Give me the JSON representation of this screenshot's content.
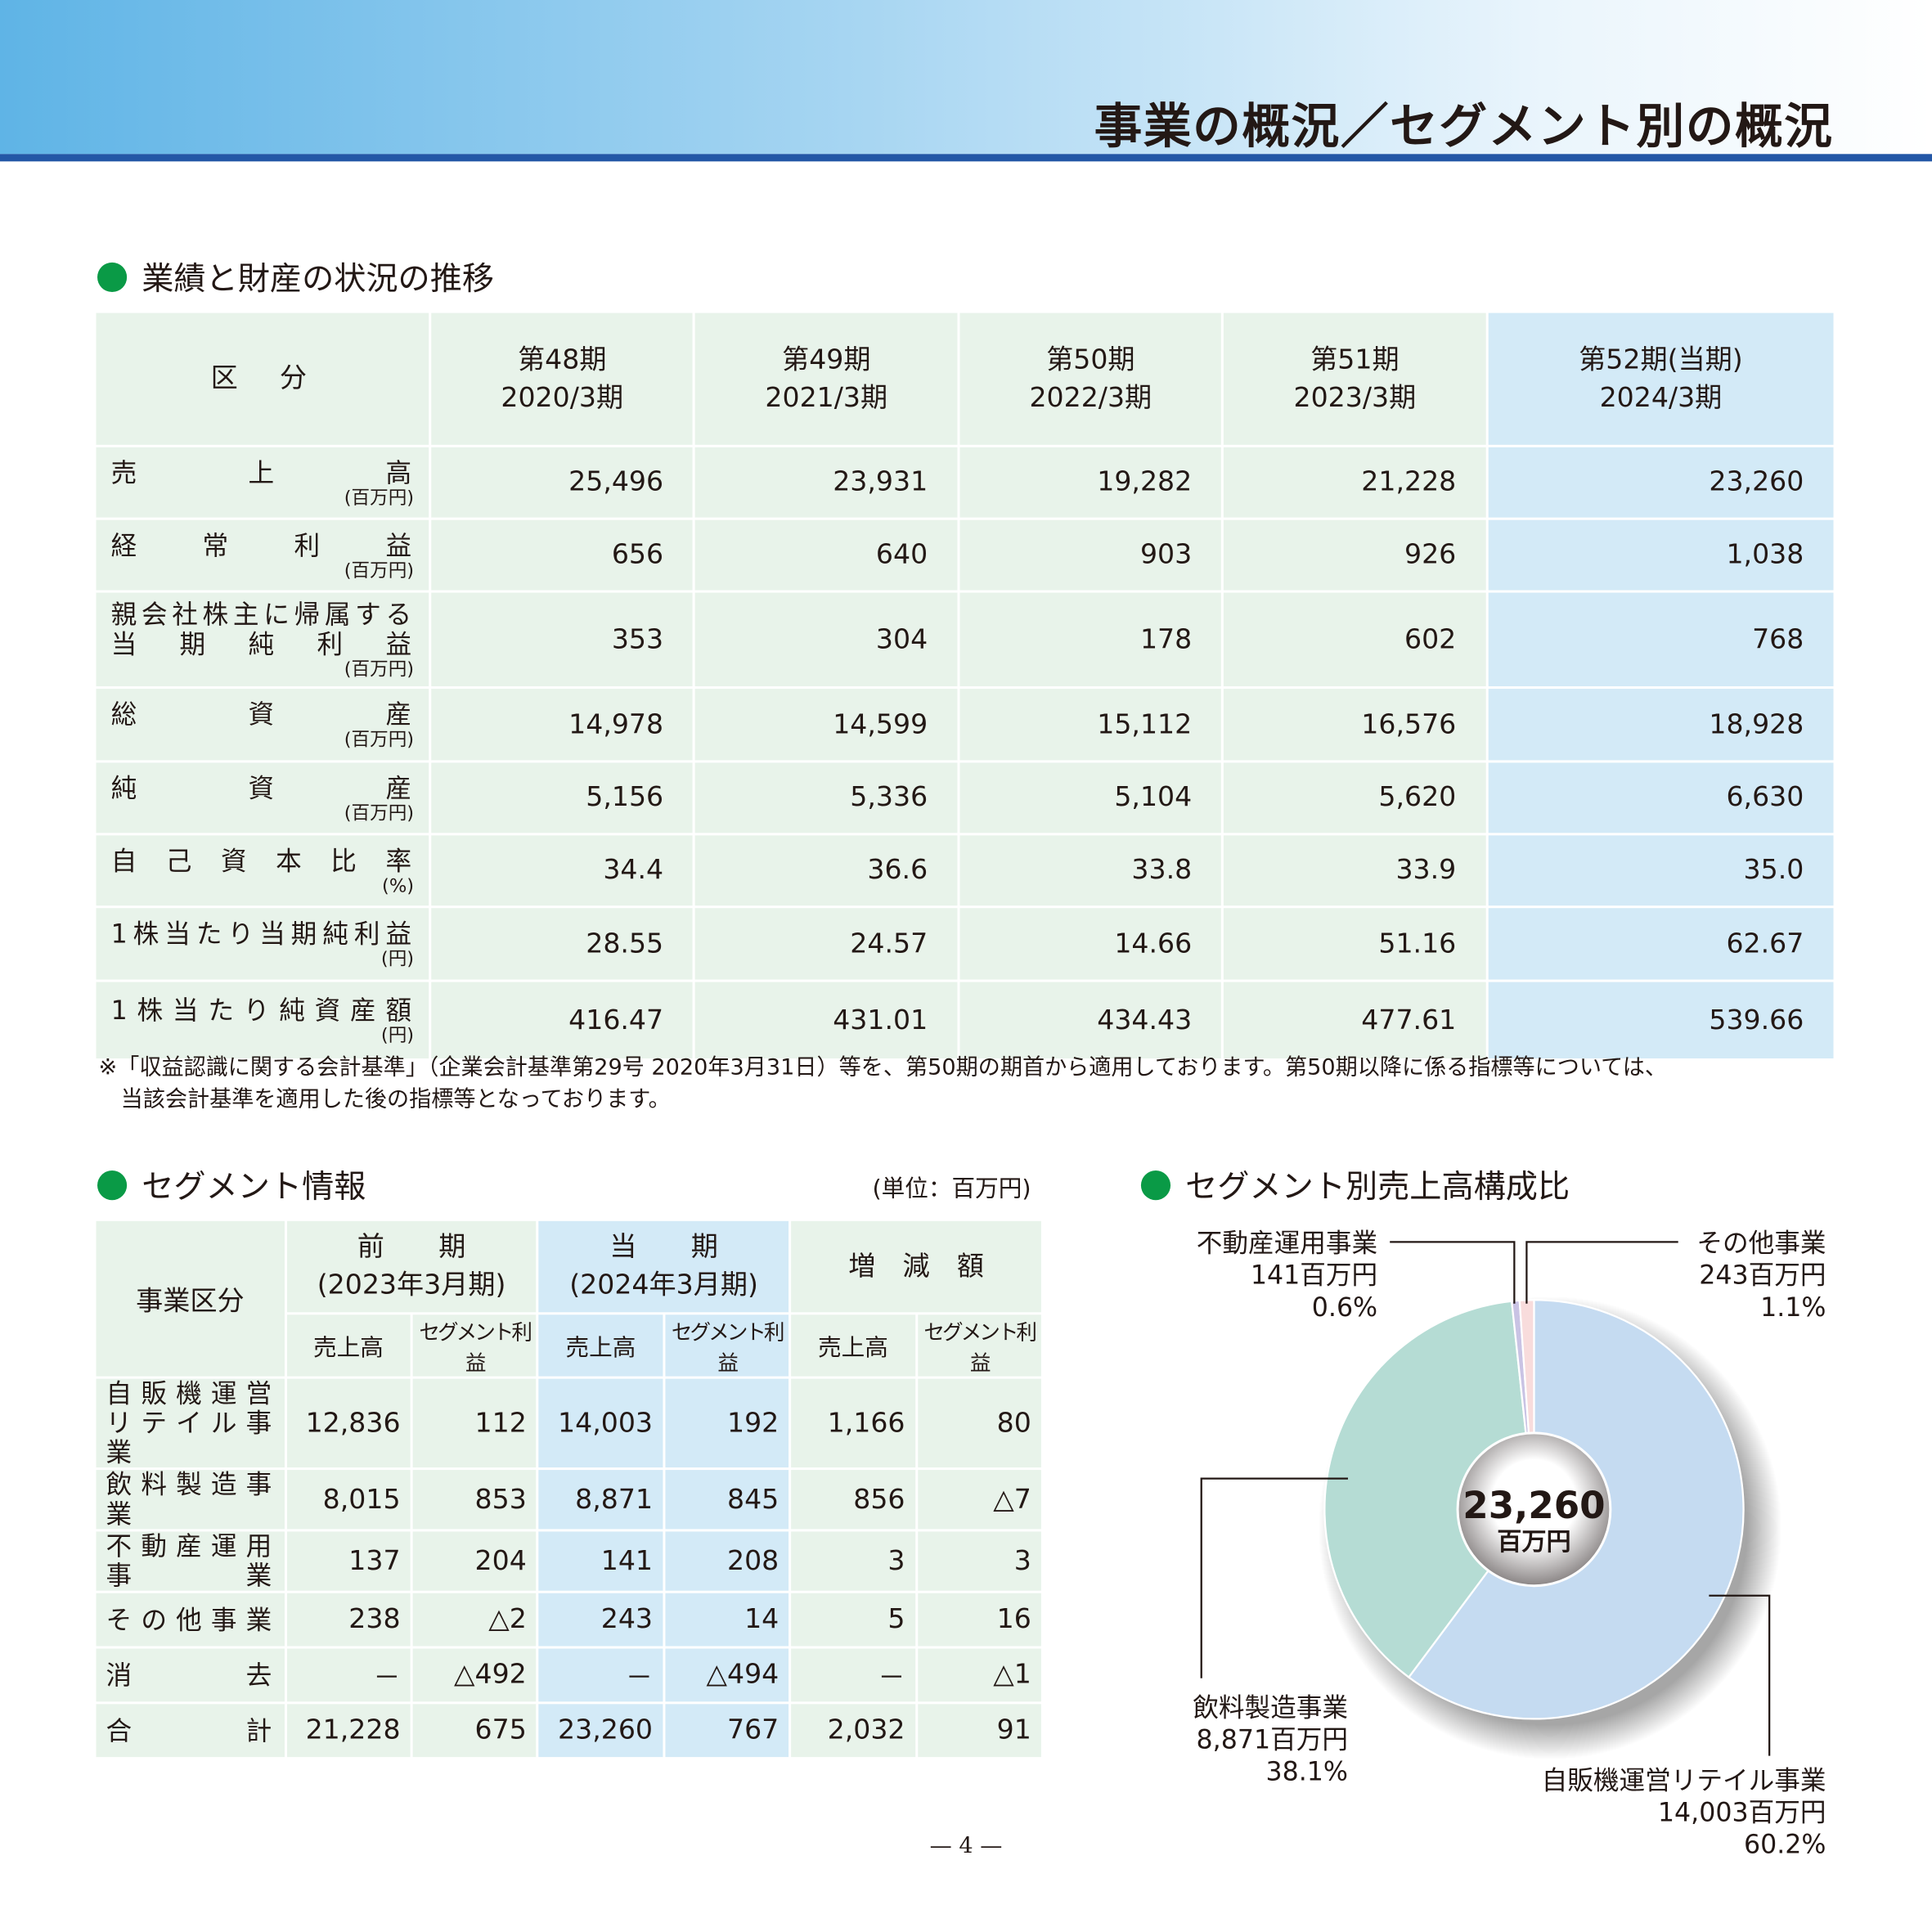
{
  "header": {
    "title": "事業の概況／セグメント別の概況"
  },
  "performance": {
    "heading": "業績と財産の状況の推移",
    "corner": "区　分",
    "periods": [
      {
        "label": "第48期",
        "date": "2020/3期"
      },
      {
        "label": "第49期",
        "date": "2021/3期"
      },
      {
        "label": "第50期",
        "date": "2022/3期"
      },
      {
        "label": "第51期",
        "date": "2023/3期"
      },
      {
        "label": "第52期(当期)",
        "date": "2024/3期"
      }
    ],
    "rows": [
      {
        "label": "売上高",
        "unit": "(百万円)",
        "values": [
          "25,496",
          "23,931",
          "19,282",
          "21,228",
          "23,260"
        ]
      },
      {
        "label": "経常利益",
        "unit": "(百万円)",
        "values": [
          "656",
          "640",
          "903",
          "926",
          "1,038"
        ]
      },
      {
        "label": "親会社株主に帰属する",
        "label2": "当期純利益",
        "unit": "(百万円)",
        "values": [
          "353",
          "304",
          "178",
          "602",
          "768"
        ]
      },
      {
        "label": "総資産",
        "unit": "(百万円)",
        "values": [
          "14,978",
          "14,599",
          "15,112",
          "16,576",
          "18,928"
        ]
      },
      {
        "label": "純資産",
        "unit": "(百万円)",
        "values": [
          "5,156",
          "5,336",
          "5,104",
          "5,620",
          "6,630"
        ]
      },
      {
        "label": "自己資本比率",
        "unit": "(%)",
        "values": [
          "34.4",
          "36.6",
          "33.8",
          "33.9",
          "35.0"
        ]
      },
      {
        "label": "1株当たり当期純利益",
        "unit": "(円)",
        "values": [
          "28.55",
          "24.57",
          "14.66",
          "51.16",
          "62.67"
        ]
      },
      {
        "label": "1株当たり純資産額",
        "unit": "(円)",
        "values": [
          "416.47",
          "431.01",
          "434.43",
          "477.61",
          "539.66"
        ]
      }
    ],
    "note_line1": "※「収益認識に関する会計基準」（企業会計基準第29号 2020年3月31日）等を、第50期の期首から適用しております。第50期以降に係る指標等については、",
    "note_line2": "当該会計基準を適用した後の指標等となっております。"
  },
  "segment": {
    "heading": "セグメント情報",
    "unit": "(単位：百万円)",
    "corner": "事業区分",
    "prev": {
      "label": "前　　期",
      "date": "(2023年3月期)"
    },
    "cur": {
      "label": "当　　期",
      "date": "(2024年3月期)"
    },
    "diff": {
      "label": "増　減　額"
    },
    "sub_sales": "売上高",
    "sub_profit": "セグメント利益",
    "rows": [
      {
        "label": "自販機運営",
        "label2": "リテイル事業",
        "values": [
          "12,836",
          "112",
          "14,003",
          "192",
          "1,166",
          "80"
        ]
      },
      {
        "label": "飲料製造事業",
        "values": [
          "8,015",
          "853",
          "8,871",
          "845",
          "856",
          "△7"
        ]
      },
      {
        "label": "不動産運用事業",
        "values": [
          "137",
          "204",
          "141",
          "208",
          "3",
          "3"
        ]
      },
      {
        "label": "その他事業",
        "values": [
          "238",
          "△2",
          "243",
          "14",
          "5",
          "16"
        ]
      },
      {
        "label": "消去",
        "values": [
          "－",
          "△492",
          "－",
          "△494",
          "－",
          "△1"
        ]
      },
      {
        "label": "合計",
        "values": [
          "21,228",
          "675",
          "23,260",
          "767",
          "2,032",
          "91"
        ]
      }
    ]
  },
  "chart_data": {
    "type": "pie",
    "title": "セグメント別売上高構成比",
    "center_value": "23,260",
    "center_unit": "百万円",
    "slices": [
      {
        "name": "自販機運営リテイル事業",
        "amount": "14,003百万円",
        "value": 60.2,
        "pct": "60.2%",
        "color": "#c5dbf1"
      },
      {
        "name": "飲料製造事業",
        "amount": "8,871百万円",
        "value": 38.1,
        "pct": "38.1%",
        "color": "#b5dcd4"
      },
      {
        "name": "不動産運用事業",
        "amount": "141百万円",
        "value": 0.6,
        "pct": "0.6%",
        "color": "#c9c3e4"
      },
      {
        "name": "その他事業",
        "amount": "243百万円",
        "value": 1.1,
        "pct": "1.1%",
        "color": "#f8dcdc"
      }
    ]
  },
  "page_number": "— 4 —"
}
